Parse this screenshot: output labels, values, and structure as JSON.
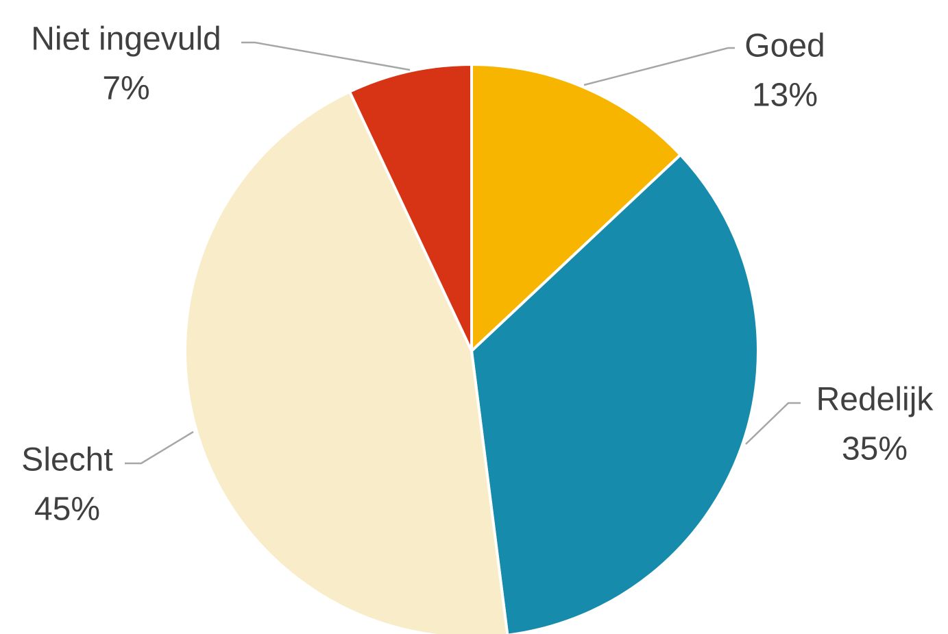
{
  "chart_data": {
    "type": "pie",
    "title": "",
    "start_angle_deg": 0,
    "direction": "clockwise",
    "legend": "none",
    "slices": [
      {
        "label": "Goed",
        "value": 13,
        "display": "13%",
        "color": "#F7B500"
      },
      {
        "label": "Redelijk",
        "value": 35,
        "display": "35%",
        "color": "#178BAB"
      },
      {
        "label": "Slecht",
        "value": 45,
        "display": "45%",
        "color": "#F8EDC8"
      },
      {
        "label": "Niet ingevuld",
        "value": 7,
        "display": "7%",
        "color": "#D63415"
      }
    ]
  }
}
